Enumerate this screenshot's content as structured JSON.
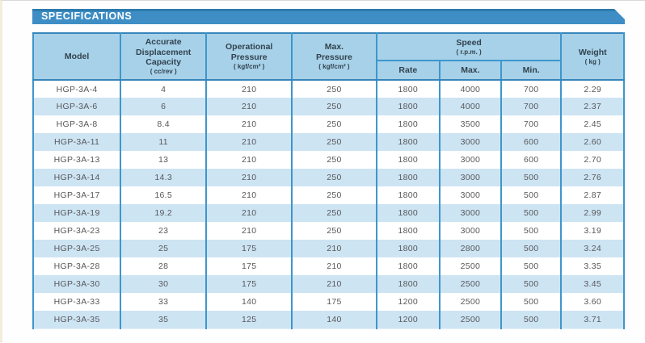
{
  "page": {
    "title": "SPECIFICATIONS"
  },
  "colors": {
    "title_bar": "#3e8ec5",
    "title_bar_edge": "#2e7bae",
    "header_bg": "#a7d1e8",
    "alt_row_bg": "#cde4f3",
    "grid_line": "#3e96cc",
    "header_text": "#31424e",
    "data_text": "#58585a"
  },
  "table": {
    "header": {
      "model": {
        "label": "Model"
      },
      "capacity": {
        "label": "Accurate\nDisplacement\nCapacity",
        "unit": "( cc/rev )"
      },
      "op_pressure": {
        "label": "Operational\nPressure",
        "unit": "( kgf/cm² )"
      },
      "max_pressure": {
        "label": "Max.\nPressure",
        "unit": "( kgf/cm² )"
      },
      "speed": {
        "label": "Speed",
        "unit": "( r.p.m. )",
        "rate": "Rate",
        "max": "Max.",
        "min": "Min."
      },
      "weight": {
        "label": "Weight",
        "unit": "( kg )"
      }
    },
    "rows": [
      {
        "model": "HGP-3A-4",
        "capacity": "4",
        "op_pressure": "210",
        "max_pressure": "250",
        "rate": "1800",
        "max": "4000",
        "min": "700",
        "weight": "2.29"
      },
      {
        "model": "HGP-3A-6",
        "capacity": "6",
        "op_pressure": "210",
        "max_pressure": "250",
        "rate": "1800",
        "max": "4000",
        "min": "700",
        "weight": "2.37"
      },
      {
        "model": "HGP-3A-8",
        "capacity": "8.4",
        "op_pressure": "210",
        "max_pressure": "250",
        "rate": "1800",
        "max": "3500",
        "min": "700",
        "weight": "2.45"
      },
      {
        "model": "HGP-3A-11",
        "capacity": "11",
        "op_pressure": "210",
        "max_pressure": "250",
        "rate": "1800",
        "max": "3000",
        "min": "600",
        "weight": "2.60"
      },
      {
        "model": "HGP-3A-13",
        "capacity": "13",
        "op_pressure": "210",
        "max_pressure": "250",
        "rate": "1800",
        "max": "3000",
        "min": "600",
        "weight": "2.70"
      },
      {
        "model": "HGP-3A-14",
        "capacity": "14.3",
        "op_pressure": "210",
        "max_pressure": "250",
        "rate": "1800",
        "max": "3000",
        "min": "500",
        "weight": "2.76"
      },
      {
        "model": "HGP-3A-17",
        "capacity": "16.5",
        "op_pressure": "210",
        "max_pressure": "250",
        "rate": "1800",
        "max": "3000",
        "min": "500",
        "weight": "2.87"
      },
      {
        "model": "HGP-3A-19",
        "capacity": "19.2",
        "op_pressure": "210",
        "max_pressure": "250",
        "rate": "1800",
        "max": "3000",
        "min": "500",
        "weight": "2.99"
      },
      {
        "model": "HGP-3A-23",
        "capacity": "23",
        "op_pressure": "210",
        "max_pressure": "250",
        "rate": "1800",
        "max": "3000",
        "min": "500",
        "weight": "3.19"
      },
      {
        "model": "HGP-3A-25",
        "capacity": "25",
        "op_pressure": "175",
        "max_pressure": "210",
        "rate": "1800",
        "max": "2800",
        "min": "500",
        "weight": "3.24"
      },
      {
        "model": "HGP-3A-28",
        "capacity": "28",
        "op_pressure": "175",
        "max_pressure": "210",
        "rate": "1800",
        "max": "2500",
        "min": "500",
        "weight": "3.35"
      },
      {
        "model": "HGP-3A-30",
        "capacity": "30",
        "op_pressure": "175",
        "max_pressure": "210",
        "rate": "1800",
        "max": "2500",
        "min": "500",
        "weight": "3.45"
      },
      {
        "model": "HGP-3A-33",
        "capacity": "33",
        "op_pressure": "140",
        "max_pressure": "175",
        "rate": "1200",
        "max": "2500",
        "min": "500",
        "weight": "3.60"
      },
      {
        "model": "HGP-3A-35",
        "capacity": "35",
        "op_pressure": "125",
        "max_pressure": "140",
        "rate": "1200",
        "max": "2500",
        "min": "500",
        "weight": "3.71"
      }
    ]
  }
}
